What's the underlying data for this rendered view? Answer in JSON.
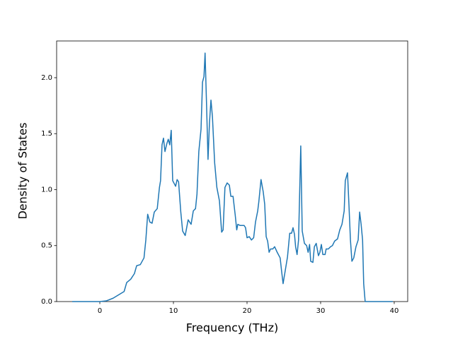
{
  "chart_data": {
    "type": "line",
    "xlabel": "Frequency (THz)",
    "ylabel": "Density of States",
    "x": [
      -3.75,
      0,
      0.87,
      1.8,
      3.3,
      3.65,
      4.2,
      4.7,
      5.0,
      5.5,
      6.0,
      6.25,
      6.5,
      6.8,
      7.1,
      7.4,
      7.8,
      8.1,
      8.25,
      8.45,
      8.65,
      8.85,
      9.1,
      9.3,
      9.5,
      9.7,
      9.9,
      10.3,
      10.5,
      10.7,
      11.0,
      11.25,
      11.6,
      12.0,
      12.4,
      12.7,
      13.0,
      13.2,
      13.45,
      13.75,
      13.95,
      14.15,
      14.3,
      14.5,
      14.7,
      14.9,
      15.1,
      15.3,
      15.6,
      15.9,
      16.25,
      16.55,
      16.75,
      17.0,
      17.3,
      17.6,
      17.8,
      18.1,
      18.4,
      18.6,
      18.75,
      19.05,
      19.3,
      19.6,
      19.8,
      20.0,
      20.3,
      20.6,
      20.9,
      21.15,
      21.45,
      21.6,
      21.9,
      22.2,
      22.4,
      22.6,
      22.8,
      23.0,
      23.2,
      23.5,
      23.75,
      24.1,
      24.5,
      24.7,
      24.9,
      25.2,
      25.5,
      25.8,
      26.05,
      26.25,
      26.45,
      26.6,
      26.8,
      27.0,
      27.3,
      27.5,
      27.8,
      28.1,
      28.3,
      28.5,
      28.65,
      28.95,
      29.15,
      29.4,
      29.7,
      29.9,
      30.1,
      30.3,
      30.6,
      30.75,
      31.05,
      31.35,
      31.6,
      31.9,
      32.3,
      32.6,
      32.9,
      33.2,
      33.35,
      33.65,
      33.85,
      34.05,
      34.25,
      34.5,
      34.8,
      35.1,
      35.3,
      35.5,
      35.7,
      35.85,
      36.05,
      39.8
    ],
    "series": [
      {
        "color": "#1f77b4",
        "values": [
          0,
          0,
          0.006,
          0.03,
          0.09,
          0.17,
          0.2,
          0.25,
          0.32,
          0.33,
          0.39,
          0.55,
          0.78,
          0.71,
          0.7,
          0.8,
          0.83,
          1.02,
          1.08,
          1.4,
          1.46,
          1.34,
          1.41,
          1.45,
          1.4,
          1.53,
          1.08,
          1.03,
          1.09,
          1.07,
          0.8,
          0.63,
          0.59,
          0.73,
          0.69,
          0.81,
          0.83,
          0.96,
          1.34,
          1.54,
          1.96,
          2.01,
          2.22,
          1.76,
          1.27,
          1.6,
          1.8,
          1.65,
          1.24,
          1.02,
          0.9,
          0.62,
          0.64,
          1.02,
          1.06,
          1.04,
          0.94,
          0.94,
          0.77,
          0.64,
          0.69,
          0.68,
          0.68,
          0.68,
          0.66,
          0.57,
          0.58,
          0.55,
          0.57,
          0.71,
          0.81,
          0.89,
          1.09,
          0.98,
          0.87,
          0.58,
          0.54,
          0.44,
          0.47,
          0.47,
          0.49,
          0.44,
          0.39,
          0.27,
          0.16,
          0.28,
          0.4,
          0.61,
          0.61,
          0.66,
          0.6,
          0.49,
          0.42,
          0.55,
          1.39,
          0.63,
          0.52,
          0.5,
          0.44,
          0.51,
          0.36,
          0.35,
          0.49,
          0.52,
          0.41,
          0.44,
          0.51,
          0.42,
          0.42,
          0.47,
          0.47,
          0.49,
          0.5,
          0.54,
          0.56,
          0.64,
          0.69,
          0.81,
          1.08,
          1.15,
          0.86,
          0.55,
          0.36,
          0.39,
          0.49,
          0.55,
          0.8,
          0.69,
          0.55,
          0.16,
          0,
          0
        ]
      }
    ],
    "xlim": [
      -5.87,
      41.83
    ],
    "ylim": [
      0,
      2.328
    ],
    "xticks": [
      0,
      10,
      20,
      30,
      40
    ],
    "yticks": [
      {
        "value": 0,
        "label": "0.0"
      },
      0.5,
      {
        "value": 1,
        "label": "1.0"
      },
      1.5,
      {
        "value": 2,
        "label": "2.0"
      }
    ]
  }
}
